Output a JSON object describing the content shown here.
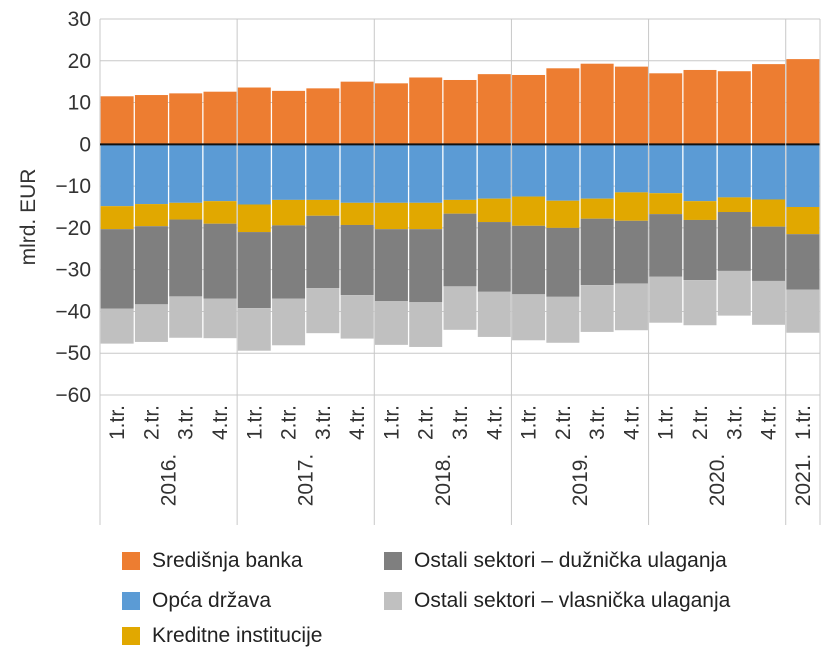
{
  "chart_data": {
    "type": "bar",
    "stacked": true,
    "ylabel": "mlrd. EUR",
    "ylim": [
      -60,
      30
    ],
    "yticks": [
      30,
      20,
      10,
      0,
      -10,
      -20,
      -30,
      -40,
      -50,
      -60
    ],
    "ytick_labels": [
      "30",
      "20",
      "10",
      "0",
      "−10",
      "−20",
      "−30",
      "−40",
      "−50",
      "−60"
    ],
    "grid": "horizontal",
    "legend_position": "bottom",
    "categories": [
      "1.tr.",
      "2.tr.",
      "3.tr.",
      "4.tr.",
      "1.tr.",
      "2.tr.",
      "3.tr.",
      "4.tr.",
      "1.tr.",
      "2.tr.",
      "3.tr.",
      "4.tr.",
      "1.tr.",
      "2.tr.",
      "3.tr.",
      "4.tr.",
      "1.tr.",
      "2.tr.",
      "3.tr.",
      "4.tr.",
      "1.tr."
    ],
    "year_groups": [
      {
        "label": "2016.",
        "count": 4
      },
      {
        "label": "2017.",
        "count": 4
      },
      {
        "label": "2018.",
        "count": 4
      },
      {
        "label": "2019.",
        "count": 4
      },
      {
        "label": "2020.",
        "count": 4
      },
      {
        "label": "2021.",
        "count": 1
      }
    ],
    "series": [
      {
        "name": "Središnja banka",
        "color": "#ED7D31",
        "values": [
          11.5,
          11.8,
          12.2,
          12.6,
          13.6,
          12.8,
          13.4,
          15.0,
          14.6,
          16.0,
          15.4,
          16.8,
          16.6,
          18.2,
          19.3,
          18.6,
          17.0,
          17.8,
          17.5,
          19.2,
          20.4
        ]
      },
      {
        "name": "Opća država",
        "color": "#5B9BD5",
        "values": [
          -14.8,
          -14.3,
          -14.0,
          -13.6,
          -14.4,
          -13.3,
          -13.3,
          -14.0,
          -14.0,
          -14.0,
          -13.3,
          -13.0,
          -12.5,
          -13.5,
          -13.0,
          -11.5,
          -11.7,
          -13.6,
          -12.7,
          -13.2,
          -15.0
        ]
      },
      {
        "name": "Kreditne institucije",
        "color": "#E1A800",
        "values": [
          -5.5,
          -5.3,
          -4.0,
          -5.4,
          -6.6,
          -6.1,
          -3.8,
          -5.3,
          -6.3,
          -6.3,
          -3.3,
          -5.6,
          -7.0,
          -6.5,
          -4.8,
          -6.8,
          -5.0,
          -4.5,
          -3.5,
          -6.5,
          -6.5
        ]
      },
      {
        "name": "Ostali sektori – dužnička ulaganja",
        "color": "#7F7F7F",
        "values": [
          -19.0,
          -18.7,
          -18.4,
          -17.9,
          -18.2,
          -17.5,
          -17.3,
          -16.8,
          -17.2,
          -17.5,
          -17.4,
          -16.7,
          -16.4,
          -16.5,
          -15.9,
          -15.0,
          -15.0,
          -14.4,
          -14.1,
          -13.0,
          -13.3
        ]
      },
      {
        "name": "Ostali sektori – vlasnička ulaganja",
        "color": "#C0C0C0",
        "values": [
          -8.4,
          -9.0,
          -9.9,
          -9.5,
          -10.2,
          -11.2,
          -10.8,
          -10.4,
          -10.5,
          -10.7,
          -10.4,
          -10.8,
          -11.0,
          -11.0,
          -11.2,
          -11.2,
          -11.0,
          -10.8,
          -10.7,
          -10.5,
          -10.3
        ]
      }
    ]
  },
  "legend": {
    "items": [
      {
        "label": "Središnja banka",
        "color": "#ED7D31"
      },
      {
        "label": "Opća država",
        "color": "#5B9BD5"
      },
      {
        "label": "Kreditne institucije",
        "color": "#E1A800"
      },
      {
        "label": "Ostali sektori – dužnička ulaganja",
        "color": "#7F7F7F"
      },
      {
        "label": "Ostali sektori – vlasnička ulaganja",
        "color": "#C0C0C0"
      }
    ]
  }
}
